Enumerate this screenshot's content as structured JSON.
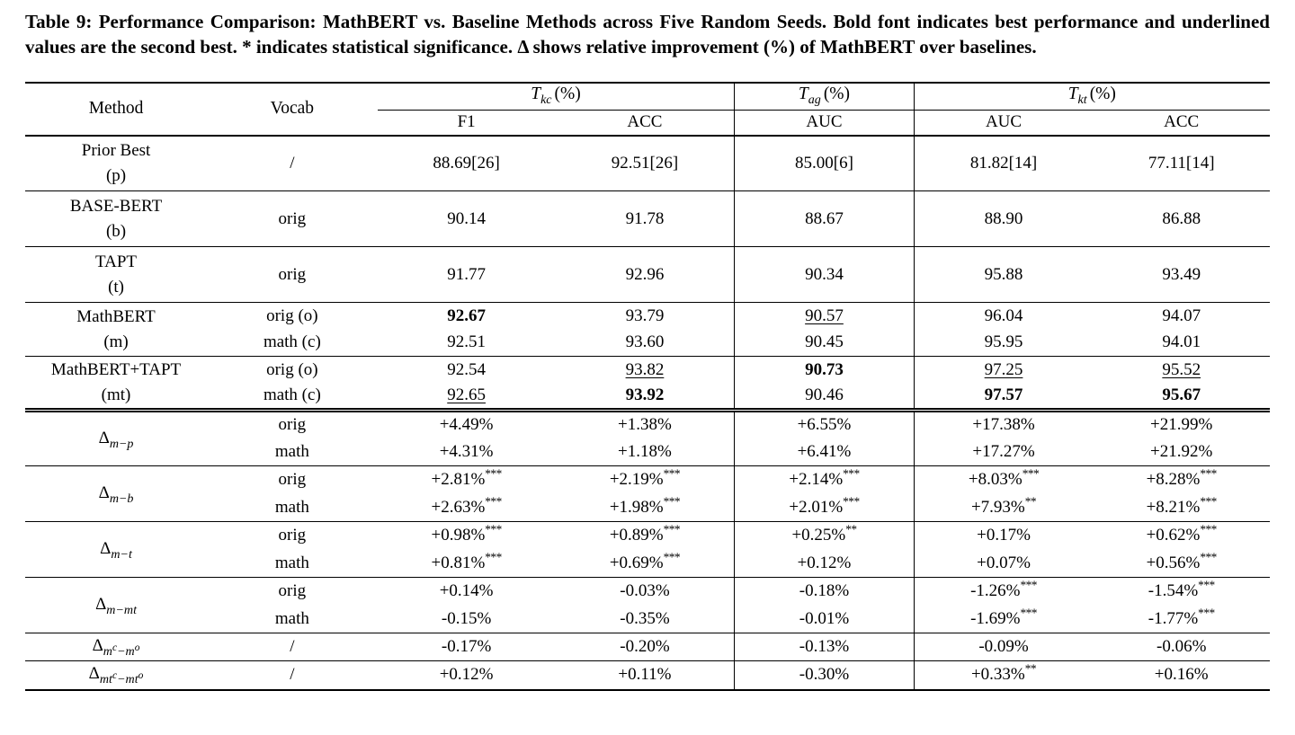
{
  "caption": {
    "full": "Table 9: Performance Comparison: MathBERT vs. Baseline Methods across Five Random Seeds. Bold font indicates best performance and underlined values are the second best. * indicates statistical significance. Δ shows relative improvement (%) of MathBERT over baselines."
  },
  "table": {
    "col_headers": {
      "method": "Method",
      "vocab": "Vocab",
      "groups": [
        {
          "symbol": "T",
          "subscript": "kc",
          "unit": "(%)",
          "subcols": [
            "F1",
            "ACC"
          ]
        },
        {
          "symbol": "T",
          "subscript": "ag",
          "unit": "(%)",
          "subcols": [
            "AUC"
          ]
        },
        {
          "symbol": "T",
          "subscript": "kt",
          "unit": "(%)",
          "subcols": [
            "AUC",
            "ACC"
          ]
        }
      ]
    },
    "body_groups": [
      {
        "method_lines": [
          "Prior Best",
          "(p)"
        ],
        "rows": [
          {
            "vocab": "/",
            "cells": [
              {
                "v": "88.69[26]"
              },
              {
                "v": "92.51[26]"
              },
              {
                "v": "85.00[6]"
              },
              {
                "v": "81.82[14]"
              },
              {
                "v": "77.11[14]"
              }
            ]
          }
        ]
      },
      {
        "method_lines": [
          "BASE-BERT",
          "(b)"
        ],
        "rows": [
          {
            "vocab": "orig",
            "cells": [
              {
                "v": "90.14"
              },
              {
                "v": "91.78"
              },
              {
                "v": "88.67"
              },
              {
                "v": "88.90"
              },
              {
                "v": "86.88"
              }
            ]
          }
        ]
      },
      {
        "method_lines": [
          "TAPT",
          "(t)"
        ],
        "rows": [
          {
            "vocab": "orig",
            "cells": [
              {
                "v": "91.77"
              },
              {
                "v": "92.96"
              },
              {
                "v": "90.34"
              },
              {
                "v": "95.88"
              },
              {
                "v": "93.49"
              }
            ]
          }
        ]
      },
      {
        "method_lines": [
          "MathBERT",
          "(m)"
        ],
        "rows": [
          {
            "vocab": "orig (o)",
            "cells": [
              {
                "v": "92.67",
                "b": true
              },
              {
                "v": "93.79"
              },
              {
                "v": "90.57",
                "u": true
              },
              {
                "v": "96.04"
              },
              {
                "v": "94.07"
              }
            ]
          },
          {
            "vocab": "math (c)",
            "cells": [
              {
                "v": "92.51"
              },
              {
                "v": "93.60"
              },
              {
                "v": "90.45"
              },
              {
                "v": "95.95"
              },
              {
                "v": "94.01"
              }
            ]
          }
        ]
      },
      {
        "method_lines": [
          "MathBERT+TAPT",
          "(mt)"
        ],
        "rows": [
          {
            "vocab": "orig (o)",
            "cells": [
              {
                "v": "92.54"
              },
              {
                "v": "93.82",
                "u": true
              },
              {
                "v": "90.73",
                "b": true
              },
              {
                "v": "97.25",
                "u": true
              },
              {
                "v": "95.52",
                "u": true
              }
            ]
          },
          {
            "vocab": "math (c)",
            "cells": [
              {
                "v": "92.65",
                "u": true
              },
              {
                "v": "93.92",
                "b": true
              },
              {
                "v": "90.46"
              },
              {
                "v": "97.57",
                "b": true
              },
              {
                "v": "95.67",
                "b": true
              }
            ]
          }
        ]
      }
    ],
    "delta_groups": [
      {
        "method": {
          "symbol": "Δ",
          "sub": [
            {
              "t": "m−p"
            }
          ]
        },
        "rows": [
          {
            "vocab": "orig",
            "cells": [
              {
                "v": "+4.49%"
              },
              {
                "v": "+1.38%"
              },
              {
                "v": "+6.55%"
              },
              {
                "v": "+17.38%"
              },
              {
                "v": "+21.99%"
              }
            ]
          },
          {
            "vocab": "math",
            "cells": [
              {
                "v": "+4.31%"
              },
              {
                "v": "+1.18%"
              },
              {
                "v": "+6.41%"
              },
              {
                "v": "+17.27%"
              },
              {
                "v": "+21.92%"
              }
            ]
          }
        ]
      },
      {
        "method": {
          "symbol": "Δ",
          "sub": [
            {
              "t": "m−b"
            }
          ]
        },
        "rows": [
          {
            "vocab": "orig",
            "cells": [
              {
                "v": "+2.81%",
                "s": "***"
              },
              {
                "v": "+2.19%",
                "s": "***"
              },
              {
                "v": "+2.14%",
                "s": "***"
              },
              {
                "v": "+8.03%",
                "s": "***"
              },
              {
                "v": "+8.28%",
                "s": "***"
              }
            ]
          },
          {
            "vocab": "math",
            "cells": [
              {
                "v": "+2.63%",
                "s": "***"
              },
              {
                "v": "+1.98%",
                "s": "***"
              },
              {
                "v": "+2.01%",
                "s": "***"
              },
              {
                "v": "+7.93%",
                "s": "**"
              },
              {
                "v": "+8.21%",
                "s": "***"
              }
            ]
          }
        ]
      },
      {
        "method": {
          "symbol": "Δ",
          "sub": [
            {
              "t": "m−t"
            }
          ]
        },
        "rows": [
          {
            "vocab": "orig",
            "cells": [
              {
                "v": "+0.98%",
                "s": "***"
              },
              {
                "v": "+0.89%",
                "s": "***"
              },
              {
                "v": "+0.25%",
                "s": "**"
              },
              {
                "v": "+0.17%"
              },
              {
                "v": "+0.62%",
                "s": "***"
              }
            ]
          },
          {
            "vocab": "math",
            "cells": [
              {
                "v": "+0.81%",
                "s": "***"
              },
              {
                "v": "+0.69%",
                "s": "***"
              },
              {
                "v": "+0.12%"
              },
              {
                "v": "+0.07%"
              },
              {
                "v": "+0.56%",
                "s": "***"
              }
            ]
          }
        ]
      },
      {
        "method": {
          "symbol": "Δ",
          "sub": [
            {
              "t": "m−mt"
            }
          ]
        },
        "rows": [
          {
            "vocab": "orig",
            "cells": [
              {
                "v": "+0.14%"
              },
              {
                "v": "-0.03%"
              },
              {
                "v": "-0.18%"
              },
              {
                "v": "-1.26%",
                "s": "***"
              },
              {
                "v": "-1.54%",
                "s": "***"
              }
            ]
          },
          {
            "vocab": "math",
            "cells": [
              {
                "v": "-0.15%"
              },
              {
                "v": "-0.35%"
              },
              {
                "v": "-0.01%"
              },
              {
                "v": "-1.69%",
                "s": "***"
              },
              {
                "v": "-1.77%",
                "s": "***"
              }
            ]
          }
        ]
      },
      {
        "method": {
          "symbol": "Δ",
          "sub": [
            {
              "t": "m"
            },
            {
              "sup": "c"
            },
            {
              "t": "−m"
            },
            {
              "sup": "o"
            }
          ]
        },
        "rows": [
          {
            "vocab": "/",
            "cells": [
              {
                "v": "-0.17%"
              },
              {
                "v": "-0.20%"
              },
              {
                "v": "-0.13%"
              },
              {
                "v": "-0.09%"
              },
              {
                "v": "-0.06%"
              }
            ]
          }
        ]
      },
      {
        "method": {
          "symbol": "Δ",
          "sub": [
            {
              "t": "mt"
            },
            {
              "sup": "c"
            },
            {
              "t": "−mt"
            },
            {
              "sup": "o"
            }
          ]
        },
        "rows": [
          {
            "vocab": "/",
            "cells": [
              {
                "v": "+0.12%"
              },
              {
                "v": "+0.11%"
              },
              {
                "v": "-0.30%"
              },
              {
                "v": "+0.33%",
                "s": "**"
              },
              {
                "v": "+0.16%"
              }
            ]
          }
        ]
      }
    ]
  }
}
